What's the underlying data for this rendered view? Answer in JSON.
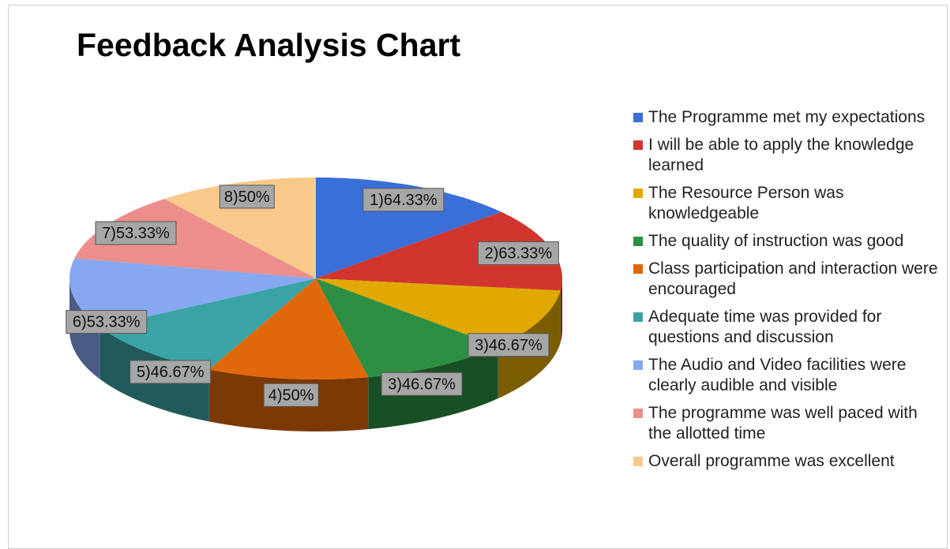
{
  "chart_data": {
    "type": "pie",
    "title": "Feedback Analysis Chart",
    "slices": [
      {
        "label": "1)64.33%",
        "value": 64.33,
        "legend": "The Programme met my expectations",
        "color": "#3a6fd8"
      },
      {
        "label": "2)63.33%",
        "value": 63.33,
        "legend": "I will be able to apply the knowledge learned",
        "color": "#d2352e"
      },
      {
        "label": "3)46.67%",
        "value": 46.67,
        "legend": "The Resource Person was knowledgeable",
        "color": "#e0a800"
      },
      {
        "label": "3)46.67%",
        "value": 46.67,
        "legend": "The quality of instruction was good",
        "color": "#2d8f43"
      },
      {
        "label": "4)50%",
        "value": 50,
        "legend": "Class participation and interaction were encouraged",
        "color": "#e0680a"
      },
      {
        "label": "5)46.67%",
        "value": 46.67,
        "legend": "Adequate time was provided for questions and discussion",
        "color": "#3aa3a6"
      },
      {
        "label": "6)53.33%",
        "value": 53.33,
        "legend": "The Audio and Video facilities were clearly audible and visible",
        "color": "#86a8f0"
      },
      {
        "label": "7)53.33%",
        "value": 53.33,
        "legend": "The programme was well paced with the allotted time",
        "color": "#ec8f8c"
      },
      {
        "label": "8)50%",
        "value": 50,
        "legend": "Overall programme was excellent",
        "color": "#f8c98a"
      }
    ],
    "legend_position": "right"
  }
}
